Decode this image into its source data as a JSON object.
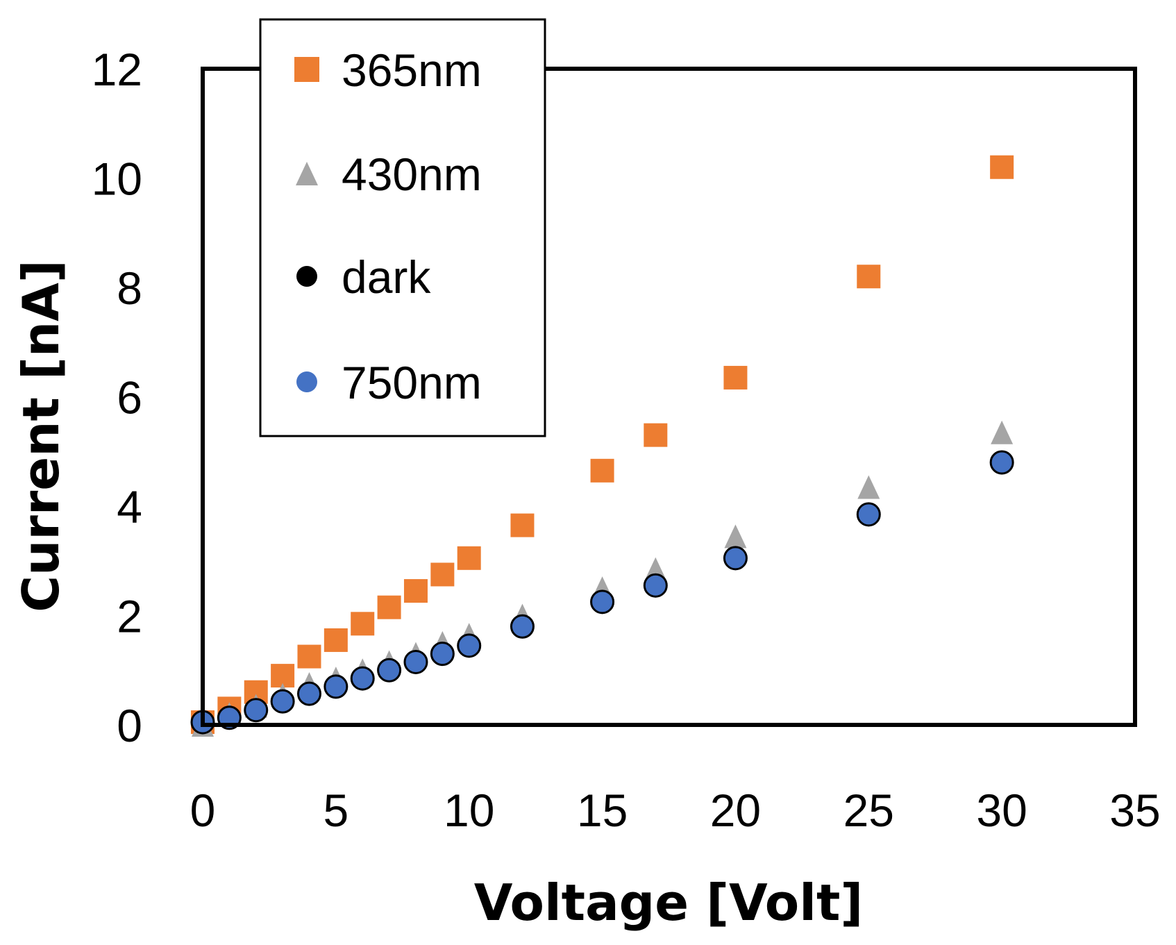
{
  "chart_data": {
    "type": "scatter",
    "title": "",
    "xlabel": "Voltage [Volt]",
    "ylabel": "Current [nA]",
    "xlim": [
      0,
      35
    ],
    "ylim": [
      0,
      12
    ],
    "xticks": [
      "0",
      "5",
      "10",
      "15",
      "20",
      "25",
      "30",
      "35"
    ],
    "yticks": [
      "0",
      "2",
      "4",
      "6",
      "8",
      "10",
      "12"
    ],
    "grid": false,
    "legend_position": "top-left",
    "series": [
      {
        "name": "365nm",
        "marker": "square",
        "color": "#ED7D31",
        "x": [
          0,
          1,
          2,
          3,
          4,
          5,
          6,
          7,
          8,
          9,
          10,
          12,
          15,
          17,
          20,
          25,
          30
        ],
        "y": [
          0.05,
          0.3,
          0.6,
          0.9,
          1.25,
          1.55,
          1.85,
          2.15,
          2.45,
          2.75,
          3.05,
          3.65,
          4.65,
          5.3,
          6.35,
          8.2,
          10.2
        ]
      },
      {
        "name": "430nm",
        "marker": "triangle",
        "color": "#A5A5A5",
        "x": [
          0,
          1,
          2,
          3,
          4,
          5,
          6,
          7,
          8,
          9,
          10,
          12,
          15,
          17,
          20,
          25,
          30
        ],
        "y": [
          0.0,
          0.2,
          0.35,
          0.55,
          0.75,
          0.85,
          1.0,
          1.15,
          1.3,
          1.5,
          1.65,
          2.0,
          2.5,
          2.85,
          3.45,
          4.35,
          5.35
        ]
      },
      {
        "name": "dark",
        "marker": "circle",
        "color": "#000000",
        "x": [
          0,
          1,
          2,
          3,
          4,
          5,
          6,
          7,
          8,
          9,
          10,
          12,
          15,
          17,
          20,
          25,
          30
        ],
        "y": [
          0.05,
          0.13,
          0.27,
          0.43,
          0.57,
          0.7,
          0.85,
          1.0,
          1.15,
          1.3,
          1.45,
          1.8,
          2.25,
          2.55,
          3.05,
          3.85,
          4.8
        ]
      },
      {
        "name": "750nm",
        "marker": "circle",
        "color": "#4472C4",
        "x": [
          0,
          1,
          2,
          3,
          4,
          5,
          6,
          7,
          8,
          9,
          10,
          12,
          15,
          17,
          20,
          25,
          30
        ],
        "y": [
          0.05,
          0.13,
          0.27,
          0.43,
          0.57,
          0.7,
          0.85,
          1.0,
          1.15,
          1.3,
          1.45,
          1.8,
          2.25,
          2.55,
          3.05,
          3.85,
          4.8
        ]
      }
    ]
  }
}
